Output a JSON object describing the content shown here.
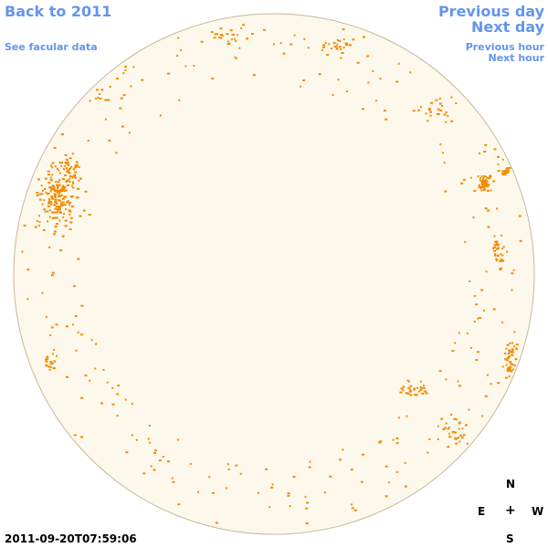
{
  "nav": {
    "back_label": "Back to 2011",
    "facular_label": "See facular data",
    "prev_day_label": "Previous day",
    "next_day_label": "Next day",
    "prev_hour_label": "Previous hour",
    "next_hour_label": "Next hour"
  },
  "compass": {
    "north": "N",
    "east": "E",
    "center": "+",
    "west": "W",
    "south": "S"
  },
  "timestamp": "2011-09-20T07:59:06",
  "colors": {
    "link": "#6495ed",
    "disk_fill": "#fdf8ec",
    "disk_outline": "#c8b89c",
    "facula_points": "#f08c00"
  }
}
